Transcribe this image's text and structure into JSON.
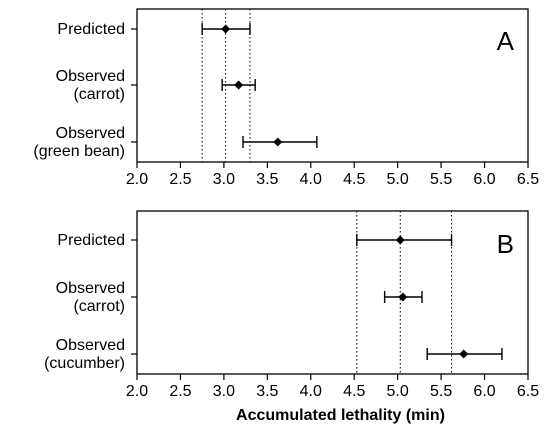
{
  "chart_data": [
    {
      "type": "scatter",
      "panel_label": "A",
      "categories": [
        [
          "Predicted"
        ],
        [
          "Observed",
          "(carrot)"
        ],
        [
          "Observed",
          "(green bean)"
        ]
      ],
      "points": [
        {
          "category": 0,
          "value": 3.02,
          "low": 2.75,
          "high": 3.3
        },
        {
          "category": 1,
          "value": 3.17,
          "low": 2.98,
          "high": 3.36
        },
        {
          "category": 2,
          "value": 3.62,
          "low": 3.22,
          "high": 4.07
        }
      ],
      "reference_lines": [
        2.75,
        3.02,
        3.3
      ],
      "xlim": [
        2.0,
        6.5
      ],
      "xticks": [
        "2.0",
        "2.5",
        "3.0",
        "3.5",
        "4.0",
        "4.5",
        "5.0",
        "5.5",
        "6.0",
        "6.5"
      ],
      "xlabel": ""
    },
    {
      "type": "scatter",
      "panel_label": "B",
      "categories": [
        [
          "Predicted"
        ],
        [
          "Observed",
          "(carrot)"
        ],
        [
          "Observed",
          "(cucumber)"
        ]
      ],
      "points": [
        {
          "category": 0,
          "value": 5.03,
          "low": 4.53,
          "high": 5.62
        },
        {
          "category": 1,
          "value": 5.06,
          "low": 4.85,
          "high": 5.28
        },
        {
          "category": 2,
          "value": 5.76,
          "low": 5.34,
          "high": 6.2
        }
      ],
      "reference_lines": [
        4.53,
        5.03,
        5.62
      ],
      "xlim": [
        2.0,
        6.5
      ],
      "xticks": [
        "2.0",
        "2.5",
        "3.0",
        "3.5",
        "4.0",
        "4.5",
        "5.0",
        "5.5",
        "6.0",
        "6.5"
      ],
      "xlabel": "Accumulated lethality (min)"
    }
  ]
}
